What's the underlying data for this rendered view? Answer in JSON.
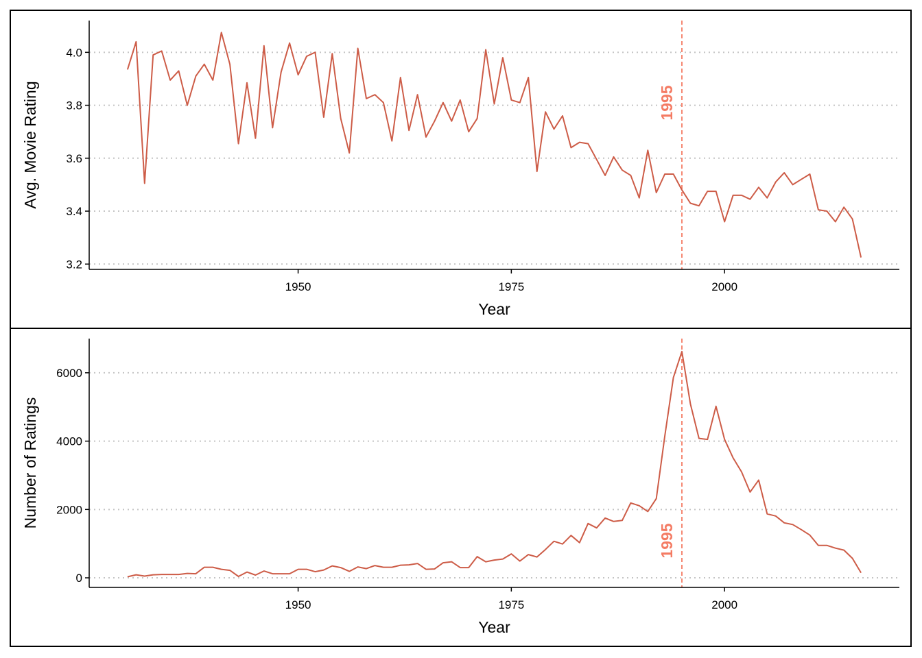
{
  "colors": {
    "line": "#cd5c47",
    "annotation": "#f47b63",
    "grid": "#c4c4c4"
  },
  "chart_data": [
    {
      "type": "line",
      "xlabel": "Year",
      "ylabel": "Avg. Movie Rating",
      "xlim": [
        1925.5,
        2020.5
      ],
      "ylim": [
        3.18,
        4.12
      ],
      "xticks": [
        1950,
        1975,
        2000
      ],
      "xtick_labels": [
        "1950",
        "1975",
        "2000"
      ],
      "yticks": [
        3.2,
        3.4,
        3.6,
        3.8,
        4.0
      ],
      "ytick_labels": [
        "3.2",
        "3.4",
        "3.6",
        "3.8",
        "4.0"
      ],
      "grid": "horizontal-dotted",
      "vline": {
        "x": 1995,
        "label": "1995"
      },
      "x": [
        1930,
        1931,
        1932,
        1933,
        1934,
        1935,
        1936,
        1937,
        1938,
        1939,
        1940,
        1941,
        1942,
        1943,
        1944,
        1945,
        1946,
        1947,
        1948,
        1949,
        1950,
        1951,
        1952,
        1953,
        1954,
        1955,
        1956,
        1957,
        1958,
        1959,
        1960,
        1961,
        1962,
        1963,
        1964,
        1965,
        1966,
        1967,
        1968,
        1969,
        1970,
        1971,
        1972,
        1973,
        1974,
        1975,
        1976,
        1977,
        1978,
        1979,
        1980,
        1981,
        1982,
        1983,
        1984,
        1985,
        1986,
        1987,
        1988,
        1989,
        1990,
        1991,
        1992,
        1993,
        1994,
        1995,
        1996,
        1997,
        1998,
        1999,
        2000,
        2001,
        2002,
        2003,
        2004,
        2005,
        2006,
        2007,
        2008,
        2009,
        2010,
        2011,
        2012,
        2013,
        2014,
        2015,
        2016
      ],
      "y": [
        3.935,
        4.04,
        3.505,
        3.99,
        4.005,
        3.895,
        3.93,
        3.8,
        3.91,
        3.955,
        3.895,
        4.075,
        3.955,
        3.655,
        3.885,
        3.675,
        4.025,
        3.715,
        3.925,
        4.035,
        3.915,
        3.985,
        4.0,
        3.755,
        3.995,
        3.75,
        3.62,
        4.015,
        3.825,
        3.84,
        3.81,
        3.665,
        3.905,
        3.705,
        3.84,
        3.68,
        3.74,
        3.81,
        3.74,
        3.82,
        3.7,
        3.75,
        4.01,
        3.805,
        3.98,
        3.82,
        3.81,
        3.905,
        3.55,
        3.775,
        3.71,
        3.76,
        3.64,
        3.66,
        3.655,
        3.595,
        3.535,
        3.605,
        3.555,
        3.535,
        3.45,
        3.63,
        3.47,
        3.54,
        3.54,
        3.48,
        3.43,
        3.42,
        3.475,
        3.475,
        3.36,
        3.46,
        3.46,
        3.445,
        3.49,
        3.45,
        3.51,
        3.545,
        3.5,
        3.52,
        3.54,
        3.405,
        3.4,
        3.36,
        3.415,
        3.37,
        3.225
      ]
    },
    {
      "type": "line",
      "xlabel": "Year",
      "ylabel": "Number of Ratings",
      "xlim": [
        1925.5,
        2020.5
      ],
      "ylim": [
        -280,
        7000
      ],
      "xticks": [
        1950,
        1975,
        2000
      ],
      "xtick_labels": [
        "1950",
        "1975",
        "2000"
      ],
      "yticks": [
        0,
        2000,
        4000,
        6000
      ],
      "ytick_labels": [
        "0",
        "2000",
        "4000",
        "6000"
      ],
      "grid": "horizontal-dotted",
      "vline": {
        "x": 1995,
        "label": "1995"
      },
      "x": [
        1930,
        1931,
        1932,
        1933,
        1934,
        1935,
        1936,
        1937,
        1938,
        1939,
        1940,
        1941,
        1942,
        1943,
        1944,
        1945,
        1946,
        1947,
        1948,
        1949,
        1950,
        1951,
        1952,
        1953,
        1954,
        1955,
        1956,
        1957,
        1958,
        1959,
        1960,
        1961,
        1962,
        1963,
        1964,
        1965,
        1966,
        1967,
        1968,
        1969,
        1970,
        1971,
        1972,
        1973,
        1974,
        1975,
        1976,
        1977,
        1978,
        1979,
        1980,
        1981,
        1982,
        1983,
        1984,
        1985,
        1986,
        1987,
        1988,
        1989,
        1990,
        1991,
        1992,
        1993,
        1994,
        1995,
        1996,
        1997,
        1998,
        1999,
        2000,
        2001,
        2002,
        2003,
        2004,
        2005,
        2006,
        2007,
        2008,
        2009,
        2010,
        2011,
        2012,
        2013,
        2014,
        2015,
        2016
      ],
      "y": [
        30,
        90,
        50,
        90,
        100,
        100,
        100,
        130,
        120,
        310,
        310,
        250,
        220,
        40,
        170,
        80,
        200,
        120,
        120,
        120,
        250,
        250,
        180,
        230,
        350,
        300,
        190,
        320,
        270,
        360,
        310,
        310,
        370,
        380,
        420,
        250,
        260,
        440,
        470,
        300,
        300,
        620,
        470,
        520,
        550,
        700,
        490,
        680,
        610,
        830,
        1070,
        990,
        1240,
        1030,
        1590,
        1460,
        1750,
        1650,
        1680,
        2190,
        2110,
        1940,
        2320,
        4150,
        5860,
        6620,
        5090,
        4080,
        4050,
        5020,
        4050,
        3510,
        3100,
        2510,
        2860,
        1870,
        1810,
        1610,
        1560,
        1410,
        1250,
        950,
        950,
        870,
        810,
        570,
        150
      ]
    }
  ]
}
